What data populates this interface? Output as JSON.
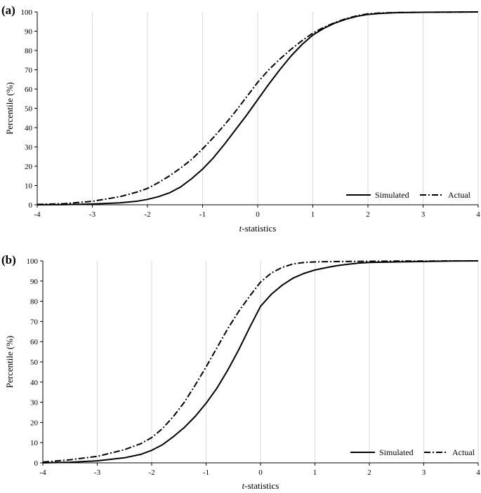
{
  "chart_data": [
    {
      "panel": "(a)",
      "type": "line",
      "title": "",
      "xlabel_italic": "t",
      "xlabel_rest": "-statistics",
      "ylabel": "Percentile (%)",
      "xlim": [
        -4,
        4
      ],
      "ylim": [
        0,
        100
      ],
      "xticks": [
        "-4",
        "-3",
        "-2",
        "-1",
        "0",
        "1",
        "2",
        "3",
        "4"
      ],
      "yticks": [
        "0",
        "10",
        "20",
        "30",
        "40",
        "50",
        "60",
        "70",
        "80",
        "90",
        "100"
      ],
      "grid": "vertical",
      "legend_position": "bottom-right",
      "series": [
        {
          "name": "Simulated",
          "style": "solid",
          "x": [
            -4,
            -3.5,
            -3,
            -2.5,
            -2.2,
            -2,
            -1.8,
            -1.6,
            -1.4,
            -1.2,
            -1,
            -0.8,
            -0.6,
            -0.4,
            -0.2,
            0,
            0.2,
            0.4,
            0.6,
            0.8,
            1,
            1.2,
            1.4,
            1.6,
            1.8,
            2,
            2.2,
            2.5,
            3,
            3.5,
            4
          ],
          "y": [
            0,
            0.1,
            0.4,
            1.0,
            1.8,
            2.8,
            4.2,
            6.2,
            9.2,
            13.5,
            18.5,
            24.5,
            31.5,
            39,
            46.5,
            54.5,
            62.5,
            70,
            77,
            83,
            88,
            91.5,
            94.2,
            96.2,
            97.7,
            98.7,
            99.2,
            99.6,
            99.8,
            99.9,
            100
          ]
        },
        {
          "name": "Actual",
          "style": "dash-dot",
          "x": [
            -4,
            -3.5,
            -3,
            -2.5,
            -2.2,
            -2,
            -1.8,
            -1.6,
            -1.4,
            -1.2,
            -1,
            -0.8,
            -0.6,
            -0.4,
            -0.2,
            0,
            0.2,
            0.4,
            0.6,
            0.8,
            1,
            1.2,
            1.4,
            1.6,
            1.8,
            2,
            2.2,
            2.5,
            3,
            3.5,
            4
          ],
          "y": [
            0.2,
            0.6,
            1.8,
            4.2,
            6.5,
            8.5,
            11.5,
            15,
            19,
            23.5,
            29,
            35,
            41.5,
            48.5,
            56,
            63.5,
            70,
            75.5,
            80.5,
            85,
            89,
            92,
            94.5,
            96.5,
            98,
            99,
            99.4,
            99.7,
            99.8,
            99.9,
            100
          ]
        }
      ]
    },
    {
      "panel": "(b)",
      "type": "line",
      "title": "",
      "xlabel_italic": "t",
      "xlabel_rest": "-statistics",
      "ylabel": "Percentile (%)",
      "xlim": [
        -4,
        4
      ],
      "ylim": [
        0,
        100
      ],
      "xticks": [
        "-4",
        "-3",
        "-2",
        "-1",
        "0",
        "1",
        "2",
        "3",
        "4"
      ],
      "yticks": [
        "0",
        "10",
        "20",
        "30",
        "40",
        "50",
        "60",
        "70",
        "80",
        "90",
        "100"
      ],
      "grid": "vertical",
      "legend_position": "bottom-right",
      "series": [
        {
          "name": "Simulated",
          "style": "solid",
          "x": [
            -4,
            -3.5,
            -3,
            -2.5,
            -2.2,
            -2,
            -1.8,
            -1.6,
            -1.4,
            -1.2,
            -1,
            -0.8,
            -0.6,
            -0.4,
            -0.2,
            0,
            0.2,
            0.4,
            0.6,
            0.8,
            1,
            1.2,
            1.4,
            1.6,
            1.8,
            2,
            2.5,
            3,
            3.5,
            4
          ],
          "y": [
            0,
            0.3,
            1.0,
            2.5,
            4.2,
            6.2,
            9,
            13,
            17.5,
            23,
            29.5,
            37,
            46,
            56,
            67,
            77.5,
            83.5,
            88,
            91.5,
            93.8,
            95.5,
            96.6,
            97.6,
            98.3,
            98.9,
            99.2,
            99.5,
            99.7,
            99.9,
            100
          ]
        },
        {
          "name": "Actual",
          "style": "dash-dot",
          "x": [
            -4,
            -3.5,
            -3,
            -2.5,
            -2.2,
            -2,
            -1.8,
            -1.6,
            -1.4,
            -1.2,
            -1,
            -0.8,
            -0.6,
            -0.4,
            -0.2,
            0,
            0.2,
            0.4,
            0.6,
            0.8,
            1,
            1.5,
            2,
            2.5,
            3,
            3.5,
            4
          ],
          "y": [
            0.4,
            1.5,
            3.2,
            6.5,
            9.5,
            12.5,
            17,
            23,
            30,
            38.5,
            47.5,
            57,
            66.5,
            75,
            82.5,
            89.5,
            94,
            96.8,
            98.5,
            99.2,
            99.5,
            99.7,
            99.8,
            99.9,
            99.9,
            100,
            100
          ]
        }
      ]
    }
  ]
}
